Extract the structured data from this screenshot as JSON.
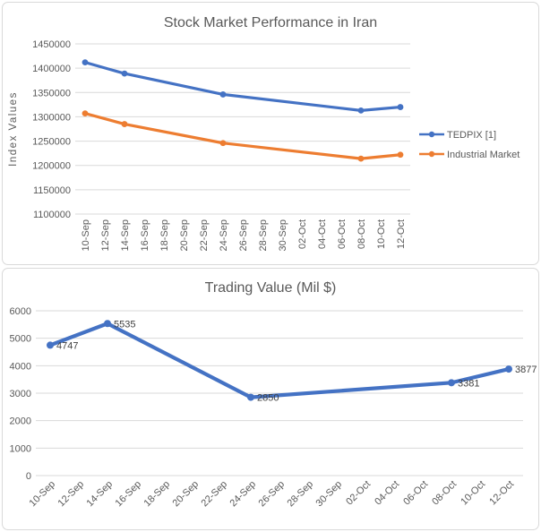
{
  "colors": {
    "series_blue": "#4472C4",
    "series_orange": "#ED7D31",
    "gridline": "#d9d9d9",
    "panel_border": "#d9d9d9",
    "title_text": "#595959",
    "tick_text": "#595959",
    "data_label_text": "#404040"
  },
  "chart_data": [
    {
      "type": "line",
      "title": "Stock Market Performance in Iran",
      "xlabel": "",
      "ylabel": "Index Values",
      "ylim": [
        1100000,
        1450000
      ],
      "ytick_step": 50000,
      "grid": true,
      "legend_position": "right",
      "x_label_rotation": -90,
      "categories": [
        "10-Sep",
        "12-Sep",
        "14-Sep",
        "16-Sep",
        "18-Sep",
        "20-Sep",
        "22-Sep",
        "24-Sep",
        "26-Sep",
        "28-Sep",
        "30-Sep",
        "02-Oct",
        "04-Oct",
        "06-Oct",
        "08-Oct",
        "10-Oct",
        "12-Oct"
      ],
      "series": [
        {
          "name": "TEDPIX [1]",
          "color": "#4472C4",
          "x": [
            "10-Sep",
            "14-Sep",
            "24-Sep",
            "08-Oct",
            "12-Oct"
          ],
          "values": [
            1412000,
            1389000,
            1346000,
            1313000,
            1320000
          ],
          "data_labels": false
        },
        {
          "name": "Industrial Market",
          "color": "#ED7D31",
          "x": [
            "10-Sep",
            "14-Sep",
            "24-Sep",
            "08-Oct",
            "12-Oct"
          ],
          "values": [
            1307000,
            1285000,
            1246000,
            1214000,
            1222000
          ],
          "data_labels": false
        }
      ]
    },
    {
      "type": "line",
      "title": "Trading Value (Mil $)",
      "xlabel": "",
      "ylabel": "",
      "ylim": [
        0,
        6000
      ],
      "ytick_step": 1000,
      "grid": true,
      "legend_position": "none",
      "x_label_rotation": -45,
      "categories": [
        "10-Sep",
        "12-Sep",
        "14-Sep",
        "16-Sep",
        "18-Sep",
        "20-Sep",
        "22-Sep",
        "24-Sep",
        "26-Sep",
        "28-Sep",
        "30-Sep",
        "02-Oct",
        "04-Oct",
        "06-Oct",
        "08-Oct",
        "10-Oct",
        "12-Oct"
      ],
      "series": [
        {
          "name": "Trading Value",
          "color": "#4472C4",
          "x": [
            "10-Sep",
            "14-Sep",
            "24-Sep",
            "08-Oct",
            "12-Oct"
          ],
          "values": [
            4747,
            5535,
            2850,
            3381,
            3877
          ],
          "data_labels": true
        }
      ]
    }
  ]
}
